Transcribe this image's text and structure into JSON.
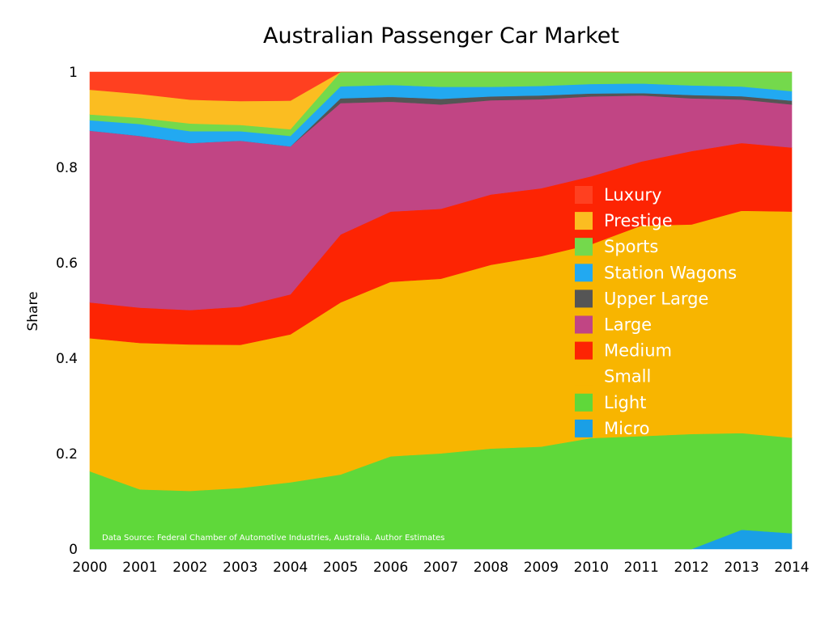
{
  "chart_data": {
    "type": "area",
    "stacked": true,
    "normalized": true,
    "title": "Australian Passenger Car Market",
    "xlabel": "",
    "ylabel": "Share",
    "x": [
      2000,
      2001,
      2002,
      2003,
      2004,
      2005,
      2006,
      2007,
      2008,
      2009,
      2010,
      2011,
      2012,
      2013,
      2014
    ],
    "ylim": [
      0,
      1
    ],
    "yticks": [
      0,
      0.2,
      0.4,
      0.6,
      0.8,
      1
    ],
    "ytick_labels": [
      "0",
      "0.2",
      "0.4",
      "0.6",
      "0.8",
      "1"
    ],
    "grid": false,
    "legend_position": "right-center",
    "source_note": "Data Source: Federal Chamber of Automotive Industries, Australia.  Author Estimates",
    "series": [
      {
        "name": "Micro",
        "color": "#1a9fe6",
        "values": [
          0,
          0,
          0,
          0,
          0,
          0,
          0,
          0,
          0,
          0,
          0,
          0,
          0,
          0.04,
          0.033
        ]
      },
      {
        "name": "Light",
        "color": "#5fd83a",
        "values": [
          0.163,
          0.125,
          0.122,
          0.128,
          0.14,
          0.156,
          0.194,
          0.2,
          0.21,
          0.214,
          0.232,
          0.236,
          0.24,
          0.2,
          0.2
        ]
      },
      {
        "name": "Small",
        "color": "#f8b500",
        "values": [
          0.279,
          0.307,
          0.307,
          0.3,
          0.31,
          0.36,
          0.365,
          0.365,
          0.384,
          0.398,
          0.405,
          0.44,
          0.437,
          0.46,
          0.473
        ]
      },
      {
        "name": "Medium",
        "color": "#fd2403",
        "values": [
          0.075,
          0.074,
          0.072,
          0.08,
          0.084,
          0.142,
          0.147,
          0.146,
          0.147,
          0.142,
          0.142,
          0.134,
          0.153,
          0.14,
          0.134
        ]
      },
      {
        "name": "Large",
        "color": "#c14584",
        "values": [
          0.36,
          0.36,
          0.35,
          0.348,
          0.31,
          0.275,
          0.23,
          0.218,
          0.197,
          0.186,
          0.167,
          0.138,
          0.11,
          0.09,
          0.09
        ]
      },
      {
        "name": "Upper Large",
        "color": "#555555",
        "values": [
          0,
          0,
          0,
          0,
          0,
          0.01,
          0.01,
          0.012,
          0.008,
          0.008,
          0.006,
          0.005,
          0.007,
          0.007,
          0.008
        ]
      },
      {
        "name": "Station Wagons",
        "color": "#22a9f1",
        "values": [
          0.022,
          0.025,
          0.025,
          0.02,
          0.022,
          0.025,
          0.025,
          0.025,
          0.02,
          0.02,
          0.02,
          0.02,
          0.02,
          0.02,
          0.02
        ]
      },
      {
        "name": "Sports",
        "color": "#74d94c",
        "values": [
          0.012,
          0.013,
          0.016,
          0.013,
          0.014,
          0.03,
          0.027,
          0.031,
          0.031,
          0.029,
          0.025,
          0.024,
          0.028,
          0.03,
          0.04
        ]
      },
      {
        "name": "Prestige",
        "color": "#fbbd21",
        "values": [
          0.052,
          0.05,
          0.05,
          0.05,
          0.06,
          0,
          0,
          0,
          0,
          0,
          0,
          0,
          0,
          0,
          0
        ]
      },
      {
        "name": "Luxury",
        "color": "#ff4020",
        "values": [
          0.037,
          0.046,
          0.058,
          0.061,
          0.06,
          0,
          0,
          0,
          0,
          0,
          0,
          0,
          0,
          0,
          0
        ]
      }
    ],
    "legend": [
      {
        "name": "Luxury",
        "color": "#ff4020"
      },
      {
        "name": "Prestige",
        "color": "#fbbd21"
      },
      {
        "name": "Sports",
        "color": "#74d94c"
      },
      {
        "name": "Station Wagons",
        "color": "#22a9f1"
      },
      {
        "name": "Upper Large",
        "color": "#555555"
      },
      {
        "name": "Large",
        "color": "#c14584"
      },
      {
        "name": "Medium",
        "color": "#fd2403"
      },
      {
        "name": "Small",
        "color": "#f8b500"
      },
      {
        "name": "Light",
        "color": "#5fd83a"
      },
      {
        "name": "Micro",
        "color": "#1a9fe6"
      }
    ]
  }
}
